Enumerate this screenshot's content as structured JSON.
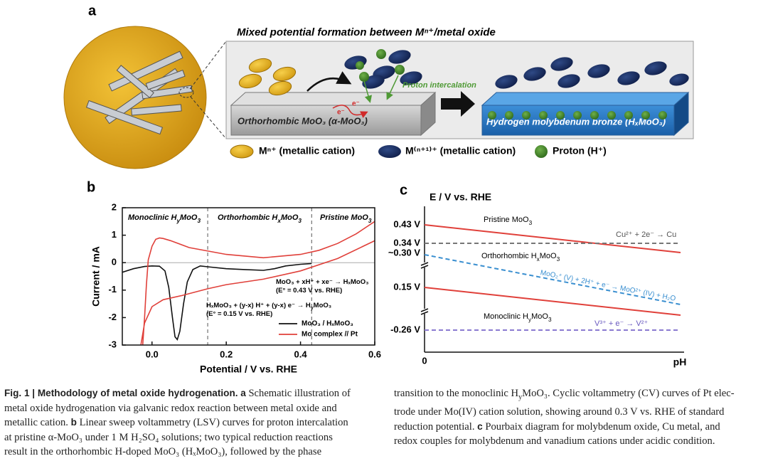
{
  "panel_a": {
    "label": "a",
    "title": "Mixed potential formation between Mⁿ⁺/metal oxide",
    "proton_label": "Proton intercalation",
    "electron_labels": [
      "e⁻",
      "e⁻"
    ],
    "slab_left": "Orthorhombic MoO₃ (α-MoO₃)",
    "slab_right": "Hydrogen molybdenum bronze (HₓMoO₃)",
    "legend": [
      "Mⁿ⁺ (metallic cation)",
      "M⁽ⁿ⁺¹⁾⁺ (metallic cation)",
      "Proton (H⁺)"
    ]
  },
  "chart_data": {
    "type": "line",
    "label": "b",
    "xlabel": "Potential / V vs. RHE",
    "ylabel": "Current / mA",
    "xlim": [
      -0.08,
      0.6
    ],
    "ylim": [
      -3,
      2
    ],
    "xticks": [
      {
        "value": 0,
        "label": "0.0"
      },
      0.2,
      0.4,
      0.6
    ],
    "yticks": [
      -3,
      -2,
      -1,
      0,
      1,
      2
    ],
    "region_boundaries": [
      0.15,
      0.43
    ],
    "region_labels": [
      [
        "Monoclinic H",
        "y",
        "MoO",
        "3"
      ],
      [
        "Orthorhombic H",
        "x",
        "MoO",
        "3"
      ],
      [
        "Pristine MoO",
        "3"
      ]
    ],
    "annotations": [
      [
        "MoO₃ + xH⁺ + xe⁻ → HₓMoO₃"
      ],
      [
        "(E° = 0.43 V vs. RHE)"
      ],
      [
        "HₓMoO₃ + (y-x) H⁺ + (y-x) e⁻ → H",
        "y",
        "MoO₃"
      ],
      [
        "(E° = 0.15 V vs. RHE)"
      ]
    ],
    "series": [
      {
        "name": "MoO₃ / HₓMoO₃",
        "color": "#111111",
        "x": [
          -0.08,
          -0.05,
          -0.02,
          0.0,
          0.02,
          0.035,
          0.045,
          0.055,
          0.062,
          0.068,
          0.075,
          0.085,
          0.095,
          0.11,
          0.13,
          0.15,
          0.2,
          0.25,
          0.3,
          0.33,
          0.36,
          0.4,
          0.43
        ],
        "values": [
          -0.35,
          -0.22,
          -0.14,
          -0.12,
          -0.13,
          -0.3,
          -0.9,
          -2.0,
          -2.7,
          -2.8,
          -2.5,
          -1.5,
          -0.7,
          -0.25,
          -0.12,
          -0.15,
          -0.22,
          -0.25,
          -0.28,
          -0.22,
          -0.12,
          -0.06,
          -0.03
        ]
      },
      {
        "name": "Mo complex // Pt",
        "color": "#e0403a",
        "x": [
          -0.03,
          -0.02,
          0.0,
          0.03,
          0.08,
          0.15,
          0.2,
          0.3,
          0.4,
          0.5,
          0.6,
          null,
          0.6,
          0.55,
          0.5,
          0.45,
          0.4,
          0.3,
          0.2,
          0.1,
          0.05,
          0.03,
          0.02,
          0.01,
          0.0,
          -0.01,
          -0.015,
          -0.02,
          -0.025
        ],
        "values": [
          -3,
          -2.2,
          -1.6,
          -1.35,
          -1.2,
          -0.95,
          -0.8,
          -0.6,
          -0.3,
          0.15,
          0.8,
          null,
          1.5,
          1.05,
          0.7,
          0.45,
          0.3,
          0.18,
          0.3,
          0.55,
          0.8,
          0.88,
          0.9,
          0.85,
          0.6,
          0.1,
          -0.8,
          -2.0,
          -3
        ]
      }
    ]
  },
  "panel_c": {
    "label": "c",
    "ylabel": "E / V vs. RHE",
    "xlabel": "pH",
    "x_origin": "0",
    "levels": [
      "0.43 V",
      "0.34 V",
      "~0.30 V",
      "0.15 V",
      "-0.26 V"
    ],
    "labels": {
      "pristine": [
        "Pristine MoO",
        "3"
      ],
      "cu": [
        "Cu²⁺ + 2e⁻ → Cu"
      ],
      "ortho": [
        "Orthorhombic H",
        "x",
        "MoO",
        "3"
      ],
      "mo": [
        "MoO₂⁺ (V) + 2H⁺ + e⁻ → MoO²⁺ (IV) + H₂O"
      ],
      "mono": [
        "Monoclinic H",
        "y",
        "MoO",
        "3"
      ],
      "v": [
        "V³⁺ + e⁻ → V²⁺"
      ]
    }
  },
  "caption": {
    "left": [
      [
        "Fig. 1 | Methodology of metal oxide hydrogenation.",
        "a",
        "Schematic illustration of"
      ],
      [
        "metal oxide hydrogenation via galvanic redox reaction between metal oxide and"
      ],
      [
        "metallic cation.",
        "b",
        "Linear sweep voltammetry (LSV) curves for proton intercalation"
      ],
      [
        "at pristine α-MoO₃ under 1 M H₂SO₄ solutions; two typical reduction reactions"
      ],
      [
        "result in the orthorhombic H-doped MoO₃ (HₓMoO₃), followed by the phase"
      ]
    ],
    "right": [
      [
        "transition to the monoclinic H",
        "y",
        "MoO₃. Cyclic voltammetry (CV) curves of Pt elec-"
      ],
      [
        "trode under Mo(IV) cation solution, showing around 0.3 V vs. RHE of standard"
      ],
      [
        "reduction potential.",
        "c",
        "Pourbaix diagram for molybdenum oxide, Cu metal, and"
      ],
      [
        "redox couples for molybdenum and vanadium cations under acidic condition."
      ]
    ]
  }
}
